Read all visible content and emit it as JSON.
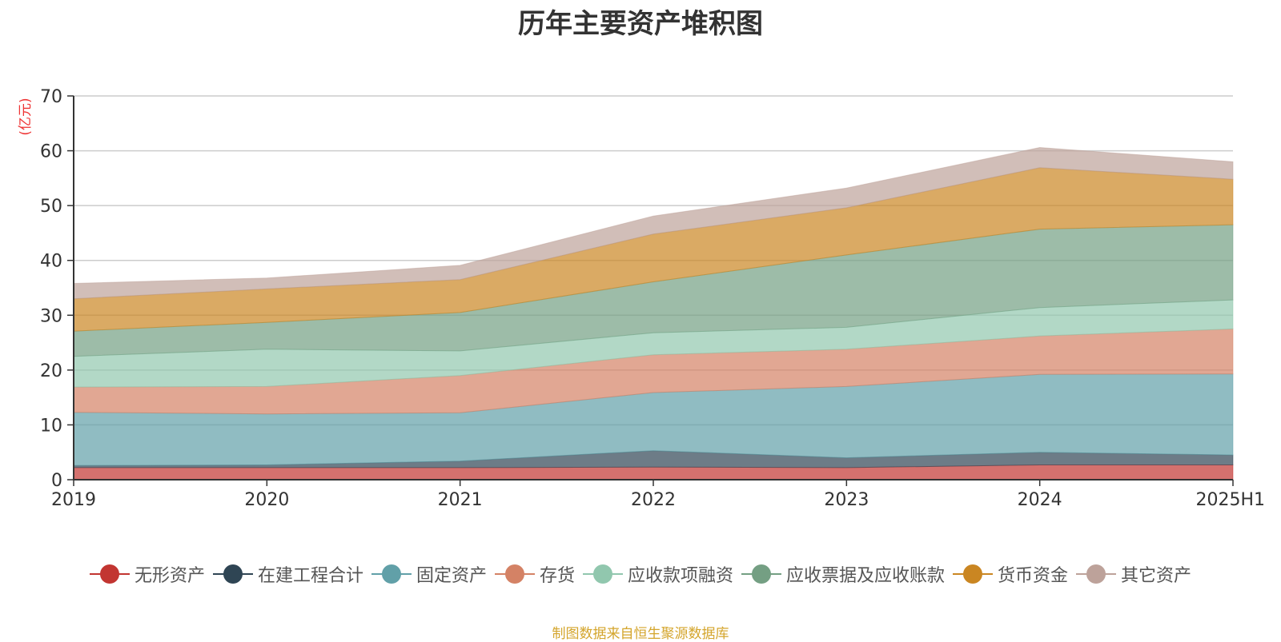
{
  "chart_data": {
    "type": "area",
    "stacked": true,
    "title": "历年主要资产堆积图",
    "ylabel": "(亿元)",
    "xlabel": "",
    "ylim": [
      0,
      70
    ],
    "yticks": [
      0,
      10,
      20,
      30,
      40,
      50,
      60,
      70
    ],
    "categories": [
      "2019",
      "2020",
      "2021",
      "2022",
      "2023",
      "2024",
      "2025H1"
    ],
    "grid": true,
    "legend_position": "bottom",
    "series": [
      {
        "name": "无形资产",
        "color": "#c23531",
        "values": [
          2.2,
          2.2,
          2.2,
          2.3,
          2.2,
          2.7,
          2.7
        ]
      },
      {
        "name": "在建工程合计",
        "color": "#2f4554",
        "values": [
          0.4,
          0.5,
          1.2,
          3.0,
          1.8,
          2.3,
          1.8
        ]
      },
      {
        "name": "固定资产",
        "color": "#61a0a8",
        "values": [
          9.7,
          9.3,
          8.8,
          10.6,
          13.0,
          14.2,
          14.8
        ]
      },
      {
        "name": "存货",
        "color": "#d48265",
        "values": [
          4.6,
          5.0,
          6.8,
          6.9,
          6.8,
          7.0,
          8.2
        ]
      },
      {
        "name": "应收款项融资",
        "color": "#91c7ae",
        "values": [
          5.6,
          6.8,
          4.5,
          4.0,
          4.0,
          5.2,
          5.3
        ]
      },
      {
        "name": "应收票据及应收账款",
        "color": "#749f83",
        "values": [
          4.6,
          4.9,
          7.0,
          9.3,
          13.2,
          14.3,
          13.7
        ]
      },
      {
        "name": "货币资金",
        "color": "#ca8622",
        "values": [
          5.9,
          6.1,
          6.0,
          8.7,
          8.6,
          11.2,
          8.3
        ]
      },
      {
        "name": "其它资产",
        "color": "#bda29a",
        "values": [
          2.8,
          2.0,
          2.6,
          3.3,
          3.6,
          3.7,
          3.2
        ]
      }
    ]
  },
  "footer": {
    "source": "制图数据来自恒生聚源数据库"
  }
}
